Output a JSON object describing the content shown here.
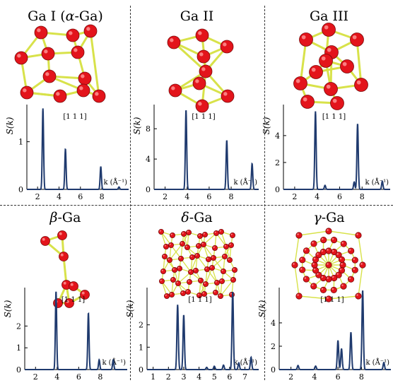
{
  "colors": {
    "line": "#1f3a6e",
    "atom": "#e3141b",
    "bond": "#d8e24a",
    "axis": "#000000"
  },
  "panels": [
    {
      "title_prefix": "Ga I (",
      "title_italic": "α",
      "title_suffix": "-Ga)",
      "structure_icon": "ga-i-crystal-structure"
    },
    {
      "title_prefix": "Ga II",
      "title_italic": "",
      "title_suffix": "",
      "structure_icon": "ga-ii-crystal-structure"
    },
    {
      "title_prefix": "Ga III",
      "title_italic": "",
      "title_suffix": "",
      "structure_icon": "ga-iii-crystal-structure"
    },
    {
      "title_prefix": "",
      "title_italic": "β",
      "title_suffix": "-Ga",
      "structure_icon": "beta-ga-crystal-structure"
    },
    {
      "title_prefix": "",
      "title_italic": "δ",
      "title_suffix": "-Ga",
      "structure_icon": "delta-ga-crystal-structure"
    },
    {
      "title_prefix": "",
      "title_italic": "γ",
      "title_suffix": "-Ga",
      "structure_icon": "gamma-ga-crystal-structure"
    }
  ],
  "chart_data": [
    {
      "type": "line",
      "title": "Ga I (α-Ga)",
      "ylabel": "S(k)",
      "xlabel": "k (Å⁻¹)",
      "annotation": "[1 1 1]",
      "xlim": [
        1,
        10.5
      ],
      "ylim": [
        0,
        1.75
      ],
      "xticks": [
        2,
        4,
        6,
        8
      ],
      "yticks": [
        0,
        1
      ],
      "peaks": [
        {
          "x": 2.5,
          "y": 1.7
        },
        {
          "x": 4.6,
          "y": 0.85
        },
        {
          "x": 7.9,
          "y": 0.48
        },
        {
          "x": 9.6,
          "y": 0.05
        }
      ]
    },
    {
      "type": "line",
      "title": "Ga II",
      "ylabel": "S(k)",
      "xlabel": "k (Å⁻¹)",
      "annotation": "[1 1 1]",
      "xlim": [
        1,
        10.5
      ],
      "ylim": [
        0,
        11
      ],
      "xticks": [
        2,
        4,
        6,
        8
      ],
      "yticks": [
        0,
        4,
        8
      ],
      "peaks": [
        {
          "x": 3.9,
          "y": 10.5
        },
        {
          "x": 7.6,
          "y": 6.5
        },
        {
          "x": 9.9,
          "y": 3.4
        }
      ]
    },
    {
      "type": "line",
      "title": "Ga III",
      "ylabel": "S(k)",
      "xlabel": "k (Å⁻¹)",
      "annotation": "[1 1 1]",
      "xlim": [
        1,
        10.5
      ],
      "ylim": [
        0,
        6.2
      ],
      "xticks": [
        2,
        4,
        6,
        8
      ],
      "yticks": [
        0,
        2,
        4
      ],
      "peaks": [
        {
          "x": 3.85,
          "y": 5.8
        },
        {
          "x": 4.7,
          "y": 0.3
        },
        {
          "x": 7.3,
          "y": 0.55
        },
        {
          "x": 7.6,
          "y": 4.9
        },
        {
          "x": 9.8,
          "y": 0.6
        }
      ]
    },
    {
      "type": "line",
      "title": "β-Ga",
      "ylabel": "S(k)",
      "xlabel": "k (Å⁻¹)",
      "annotation": "[1 1 1]",
      "xlim": [
        1,
        10.5
      ],
      "ylim": [
        0,
        3.7
      ],
      "xticks": [
        2,
        4,
        6,
        8
      ],
      "yticks": [
        0,
        1,
        2
      ],
      "peaks": [
        {
          "x": 3.9,
          "y": 3.6
        },
        {
          "x": 6.9,
          "y": 2.6
        },
        {
          "x": 7.9,
          "y": 0.45
        },
        {
          "x": 9.2,
          "y": 0.45
        }
      ]
    },
    {
      "type": "line",
      "title": "δ-Ga",
      "ylabel": "S(k)",
      "xlabel": "k (Å⁻¹)",
      "annotation": "[1 1 1]",
      "xlim": [
        0.6,
        7.9
      ],
      "ylim": [
        0,
        3.6
      ],
      "xticks": [
        1,
        2,
        3,
        4,
        5,
        6,
        7
      ],
      "yticks": [
        0,
        1,
        2
      ],
      "peaks": [
        {
          "x": 2.6,
          "y": 2.9
        },
        {
          "x": 3.0,
          "y": 2.45
        },
        {
          "x": 4.5,
          "y": 0.1
        },
        {
          "x": 5.0,
          "y": 0.15
        },
        {
          "x": 5.6,
          "y": 0.2
        },
        {
          "x": 6.2,
          "y": 3.5
        },
        {
          "x": 6.6,
          "y": 0.3
        },
        {
          "x": 7.4,
          "y": 0.55
        }
      ]
    },
    {
      "type": "line",
      "title": "γ-Ga",
      "ylabel": "S(k)",
      "xlabel": "k (Å⁻¹)",
      "annotation": "[1 1 1]",
      "xlim": [
        1,
        10.5
      ],
      "ylim": [
        0,
        6.9
      ],
      "xticks": [
        2,
        4,
        6,
        8
      ],
      "yticks": [
        0,
        2,
        4
      ],
      "peaks": [
        {
          "x": 2.6,
          "y": 0.35
        },
        {
          "x": 4.1,
          "y": 0.3
        },
        {
          "x": 6.0,
          "y": 2.5
        },
        {
          "x": 6.3,
          "y": 1.8
        },
        {
          "x": 7.1,
          "y": 3.2
        },
        {
          "x": 8.1,
          "y": 6.8
        },
        {
          "x": 9.9,
          "y": 0.6
        }
      ]
    }
  ]
}
